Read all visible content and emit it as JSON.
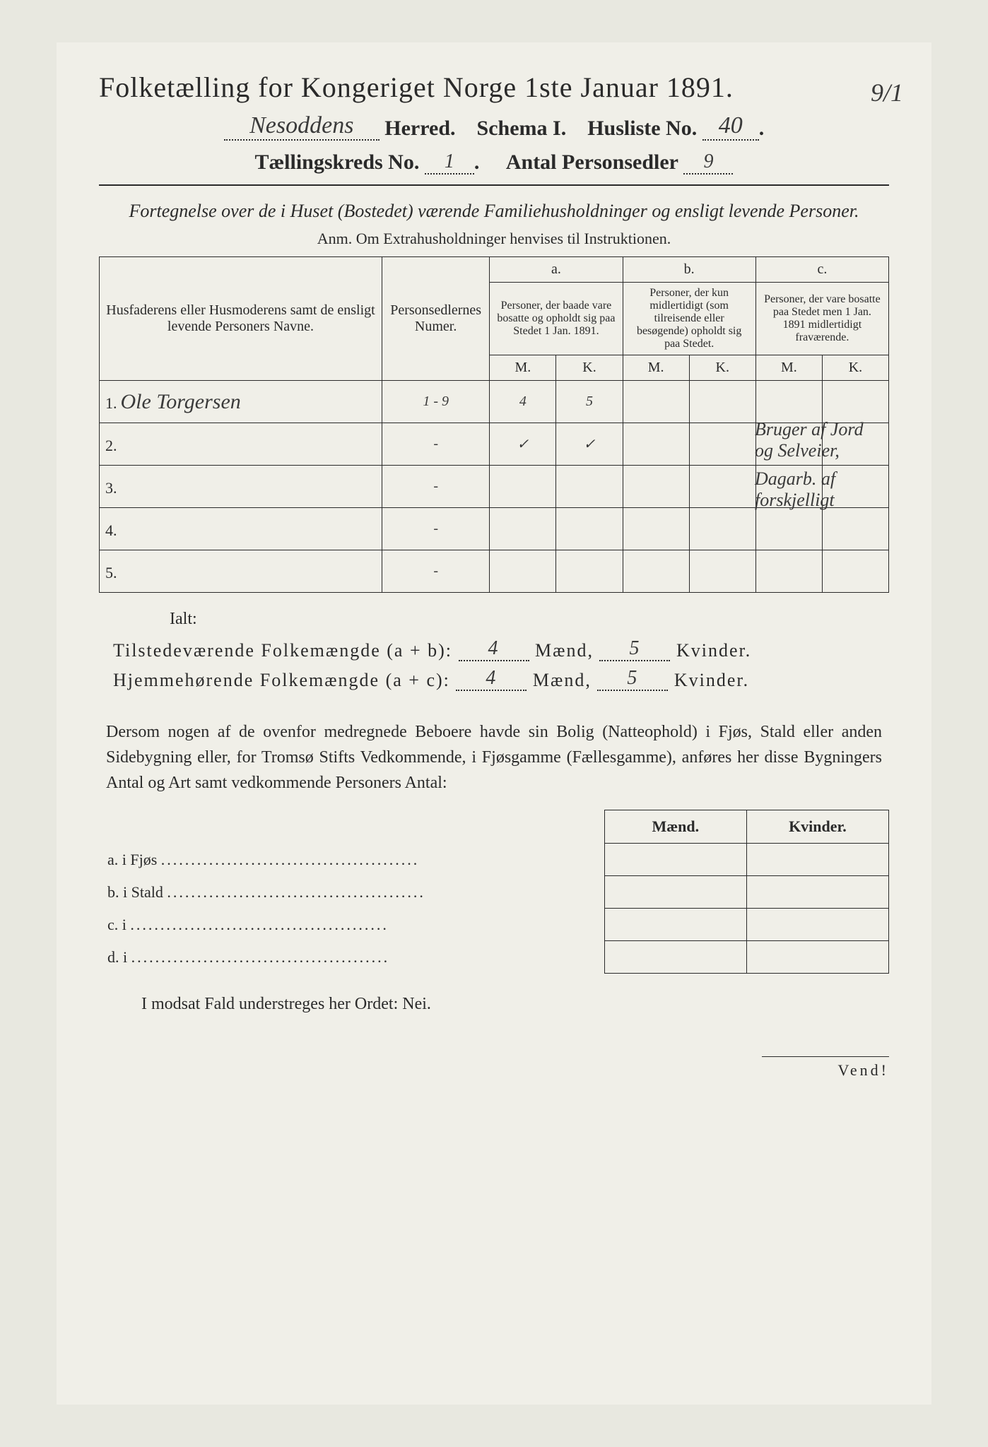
{
  "corner_note": "9/1",
  "title": "Folketælling for Kongeriget Norge 1ste Januar 1891.",
  "herred_value": "Nesoddens",
  "herred_label": "Herred.",
  "schema_label": "Schema I.",
  "husliste_label": "Husliste No.",
  "husliste_value": "40",
  "kreds_label": "Tællingskreds No.",
  "kreds_value": "1",
  "personsedler_label": "Antal Personsedler",
  "personsedler_value": "9",
  "subtitle": "Fortegnelse over de i Huset (Bostedet) værende Familiehusholdninger og ensligt levende Personer.",
  "anm": "Anm. Om Extrahusholdninger henvises til Instruktionen.",
  "table": {
    "col_name": "Husfaderens eller Husmoderens samt de ensligt levende Personers Navne.",
    "col_num": "Personsedlernes Numer.",
    "col_a_top": "a.",
    "col_a": "Personer, der baade vare bosatte og opholdt sig paa Stedet 1 Jan. 1891.",
    "col_b_top": "b.",
    "col_b": "Personer, der kun midlertidigt (som tilreisende eller besøgende) opholdt sig paa Stedet.",
    "col_c_top": "c.",
    "col_c": "Personer, der vare bosatte paa Stedet men 1 Jan. 1891 midlertidigt fraværende.",
    "mk_m": "M.",
    "mk_k": "K.",
    "rows": [
      {
        "n": "1.",
        "name": "Ole Torgersen",
        "num": "1 - 9",
        "a_m": "4",
        "a_k": "5",
        "b_m": "",
        "b_k": "",
        "c_m": "",
        "c_k": ""
      },
      {
        "n": "2.",
        "name": "",
        "num": "-",
        "a_m": "✓",
        "a_k": "✓",
        "b_m": "",
        "b_k": "",
        "c_m": "",
        "c_k": ""
      },
      {
        "n": "3.",
        "name": "",
        "num": "-",
        "a_m": "",
        "a_k": "",
        "b_m": "",
        "b_k": "",
        "c_m": "",
        "c_k": ""
      },
      {
        "n": "4.",
        "name": "",
        "num": "-",
        "a_m": "",
        "a_k": "",
        "b_m": "",
        "b_k": "",
        "c_m": "",
        "c_k": ""
      },
      {
        "n": "5.",
        "name": "",
        "num": "-",
        "a_m": "",
        "a_k": "",
        "b_m": "",
        "b_k": "",
        "c_m": "",
        "c_k": ""
      }
    ],
    "margin_note1": "Bruger af Jord og Selveier,",
    "margin_note2": "Dagarb. af forskjelligt"
  },
  "ialt": "Ialt:",
  "sum1_label": "Tilstedeværende Folkemængde (a + b):",
  "sum1_m": "4",
  "sum1_k": "5",
  "sum2_label": "Hjemmehørende Folkemængde (a + c):",
  "sum2_m": "4",
  "sum2_k": "5",
  "maend": "Mænd,",
  "kvinder": "Kvinder.",
  "para": "Dersom nogen af de ovenfor medregnede Beboere havde sin Bolig (Natteophold) i Fjøs, Stald eller anden Sidebygning eller, for Tromsø Stifts Vedkommende, i Fjøsgamme (Fællesgamme), anføres her disse Bygningers Antal og Art samt vedkommende Personers Antal:",
  "second_head_m": "Mænd.",
  "second_head_k": "Kvinder.",
  "second_rows": [
    {
      "label": "a. i    Fjøs"
    },
    {
      "label": "b. i    Stald"
    },
    {
      "label": "c. i"
    },
    {
      "label": "d. i"
    }
  ],
  "nei_line": "I modsat Fald understreges her Ordet: Nei.",
  "vend": "Vend!"
}
